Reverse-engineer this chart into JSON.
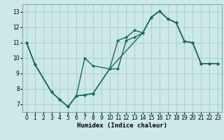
{
  "background_color": "#cce8e8",
  "grid_color": "#aacccc",
  "line_color": "#1a6b5a",
  "markersize": 2.5,
  "linewidth": 1.0,
  "xlabel": "Humidex (Indice chaleur)",
  "xlim": [
    -0.5,
    23.5
  ],
  "ylim": [
    6.5,
    13.5
  ],
  "xticks": [
    0,
    1,
    2,
    3,
    4,
    5,
    6,
    7,
    8,
    9,
    10,
    11,
    12,
    13,
    14,
    15,
    16,
    17,
    18,
    19,
    20,
    21,
    22,
    23
  ],
  "yticks": [
    7,
    8,
    9,
    10,
    11,
    12,
    13
  ],
  "line1_x": [
    0,
    1,
    3,
    4,
    5,
    6,
    7,
    8,
    10,
    11,
    12,
    13,
    14,
    15,
    16,
    17,
    18,
    19,
    20,
    21,
    22,
    23
  ],
  "line1_y": [
    11.0,
    9.6,
    7.8,
    7.3,
    6.85,
    7.55,
    10.0,
    9.5,
    9.3,
    11.15,
    11.35,
    11.8,
    11.65,
    12.65,
    13.05,
    12.55,
    12.3,
    11.1,
    11.0,
    9.65,
    9.65,
    9.65
  ],
  "line2_x": [
    0,
    1,
    3,
    4,
    5,
    6,
    7,
    8,
    10,
    11,
    12,
    13,
    14,
    15,
    16,
    17,
    18,
    19,
    20,
    21,
    22,
    23
  ],
  "line2_y": [
    11.0,
    9.6,
    7.8,
    7.3,
    6.85,
    7.55,
    7.6,
    7.7,
    9.3,
    9.3,
    11.15,
    11.35,
    11.65,
    12.65,
    13.05,
    12.55,
    12.3,
    11.1,
    11.0,
    9.65,
    9.65,
    9.65
  ],
  "line3_x": [
    0,
    1,
    3,
    4,
    5,
    6,
    8,
    10,
    14,
    15,
    16,
    17,
    18,
    19,
    20,
    21,
    22,
    23
  ],
  "line3_y": [
    11.0,
    9.6,
    7.8,
    7.3,
    6.85,
    7.55,
    7.7,
    9.3,
    11.65,
    12.65,
    13.05,
    12.55,
    12.3,
    11.1,
    11.0,
    9.65,
    9.65,
    9.65
  ]
}
